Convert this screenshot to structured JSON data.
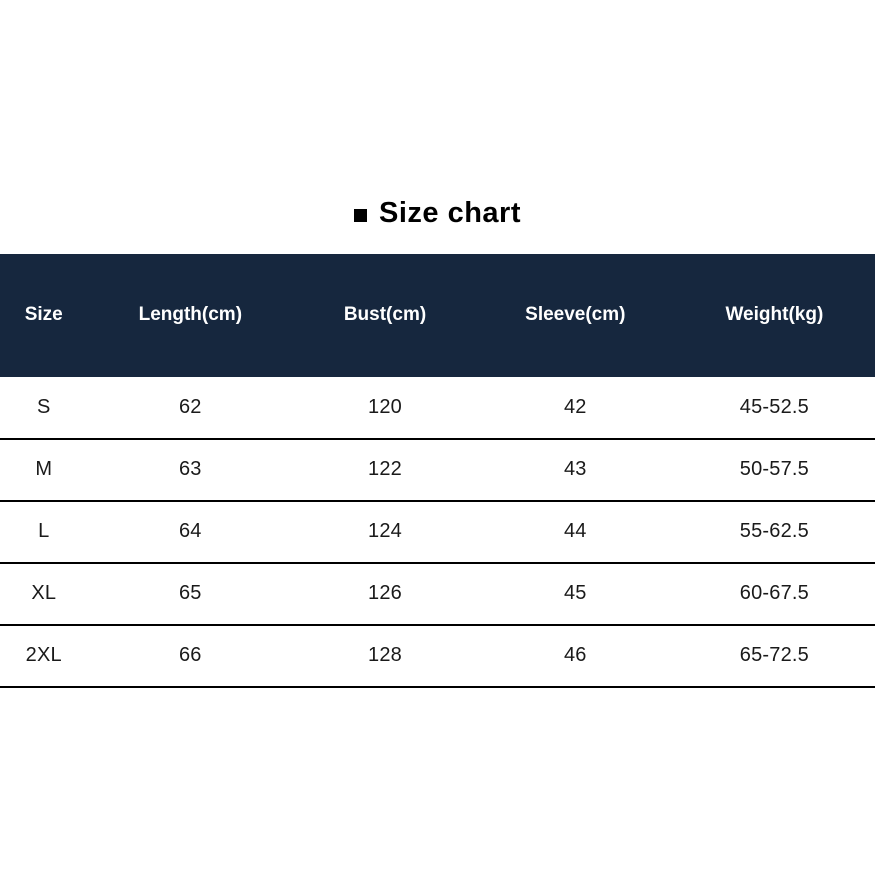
{
  "title": {
    "bullet_icon": "black-square",
    "text": "Size chart"
  },
  "colors": {
    "header_bg": "#16273E",
    "header_text": "#ffffff",
    "body_text": "#1a1a1a",
    "row_divider": "#000000",
    "page_bg": "#ffffff"
  },
  "chart_data": {
    "type": "table",
    "title": "Size chart",
    "columns": [
      "Size",
      "Length(cm)",
      "Bust(cm)",
      "Sleeve(cm)",
      "Weight(kg)"
    ],
    "rows": [
      {
        "size": "S",
        "length_cm": "62",
        "bust_cm": "120",
        "sleeve_cm": "42",
        "weight_kg": "45-52.5"
      },
      {
        "size": "M",
        "length_cm": "63",
        "bust_cm": "122",
        "sleeve_cm": "43",
        "weight_kg": "50-57.5"
      },
      {
        "size": "L",
        "length_cm": "64",
        "bust_cm": "124",
        "sleeve_cm": "44",
        "weight_kg": "55-62.5"
      },
      {
        "size": "XL",
        "length_cm": "65",
        "bust_cm": "126",
        "sleeve_cm": "45",
        "weight_kg": "60-67.5"
      },
      {
        "size": "2XL",
        "length_cm": "66",
        "bust_cm": "128",
        "sleeve_cm": "46",
        "weight_kg": "65-72.5"
      }
    ]
  }
}
